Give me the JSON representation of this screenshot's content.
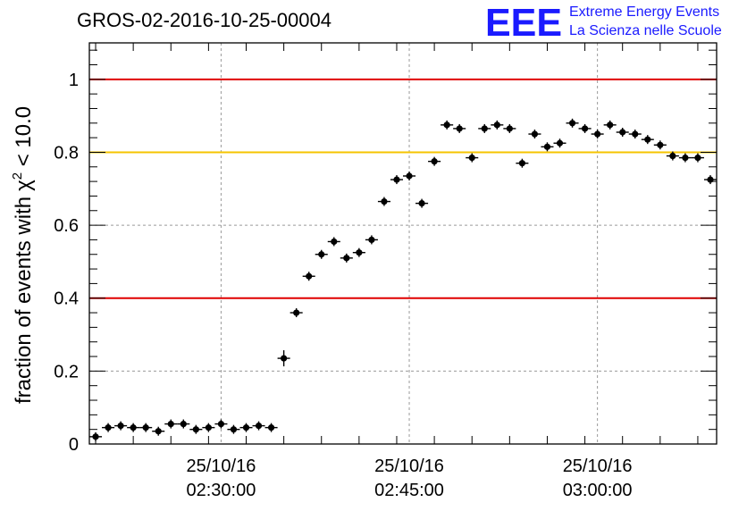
{
  "colors": {
    "red_line": "#e00000",
    "yellow_line": "#f5c400",
    "logo_blue": "#1a1aff",
    "marker": "#000000"
  },
  "logo": {
    "mark": "EEE",
    "line1": "Extreme Energy Events",
    "line2": "La Scienza nelle Scuole"
  },
  "chart_data": {
    "type": "scatter",
    "title": "GROS-02-2016-10-25-00004",
    "ylabel": "fraction of events with",
    "ylabel_chi": "χ",
    "ylabel_sup": "2",
    "ylabel_tail": " < 10.0",
    "ylim": [
      0,
      1.1
    ],
    "xlim_minutes": [
      0,
      50
    ],
    "yticks": [
      {
        "value": 0,
        "label": "0"
      },
      {
        "value": 0.2,
        "label": "0.2"
      },
      {
        "value": 0.4,
        "label": "0.4"
      },
      {
        "value": 0.6,
        "label": "0.6"
      },
      {
        "value": 0.8,
        "label": "0.8"
      },
      {
        "value": 1,
        "label": "1"
      }
    ],
    "xticks": [
      {
        "t": 10.5,
        "date": "25/10/16",
        "time": "02:30:00"
      },
      {
        "t": 25.5,
        "date": "25/10/16",
        "time": "02:45:00"
      },
      {
        "t": 40.5,
        "date": "25/10/16",
        "time": "03:00:00"
      }
    ],
    "reference_lines": [
      {
        "y": 1.0,
        "color": "#e00000"
      },
      {
        "y": 0.8,
        "color": "#f5c400"
      },
      {
        "y": 0.4,
        "color": "#e00000"
      }
    ],
    "grid": true,
    "series": [
      {
        "t": [
          0.5,
          1.5,
          2.5,
          3.5,
          4.5,
          5.5,
          6.5,
          7.5,
          8.5,
          9.5,
          10.5,
          11.5,
          12.5,
          13.5,
          14.5,
          15.5,
          16.5,
          17.5,
          18.5,
          19.5,
          20.5,
          21.5,
          22.5,
          23.5,
          24.5,
          25.5,
          26.5,
          27.5,
          28.5,
          29.5,
          30.5,
          31.5,
          32.5,
          33.5,
          34.5,
          35.5,
          36.5,
          37.5,
          38.5,
          39.5,
          40.5,
          41.5,
          42.5,
          43.5,
          44.5,
          45.5,
          46.5,
          47.5,
          48.5,
          49.5
        ],
        "y": [
          0.02,
          0.045,
          0.05,
          0.045,
          0.045,
          0.035,
          0.055,
          0.055,
          0.04,
          0.045,
          0.055,
          0.04,
          0.045,
          0.05,
          0.045,
          0.235,
          0.36,
          0.46,
          0.52,
          0.555,
          0.51,
          0.525,
          0.56,
          0.665,
          0.725,
          0.735,
          0.66,
          0.775,
          0.875,
          0.865,
          0.785,
          0.865,
          0.875,
          0.865,
          0.77,
          0.85,
          0.815,
          0.825,
          0.88,
          0.865,
          0.85,
          0.875,
          0.855,
          0.85,
          0.835,
          0.82,
          0.79,
          0.785,
          0.785,
          0.725
        ]
      }
    ]
  }
}
